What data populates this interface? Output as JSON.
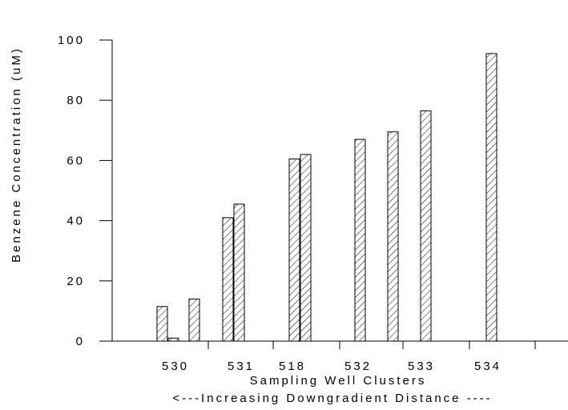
{
  "chart_data": {
    "type": "bar",
    "title": "",
    "xlabel": "Sampling Well Clusters",
    "xlabel_sub": "<---Increasing Downgradient Distance ----",
    "ylabel": "Benzene Concentration (uM)",
    "ylim": [
      0,
      100
    ],
    "yticks": [
      0,
      20,
      40,
      60,
      80,
      100
    ],
    "grid": false,
    "bar_pattern": "diagonal-hatch",
    "categories": [
      "530",
      "531",
      "518",
      "532",
      "533",
      "534"
    ],
    "bars": [
      {
        "group": "530",
        "value": 11.5
      },
      {
        "group": "530",
        "value": 1
      },
      {
        "group": "530",
        "value": 14
      },
      {
        "group": "531",
        "value": 41
      },
      {
        "group": "531",
        "value": 45.5
      },
      {
        "group": "518",
        "value": 60.5
      },
      {
        "group": "518",
        "value": 62
      },
      {
        "group": "532",
        "value": 67
      },
      {
        "group": "532",
        "value": 69.5
      },
      {
        "group": "533",
        "value": 76.5
      },
      {
        "group": "534",
        "value": 95.5
      }
    ]
  }
}
